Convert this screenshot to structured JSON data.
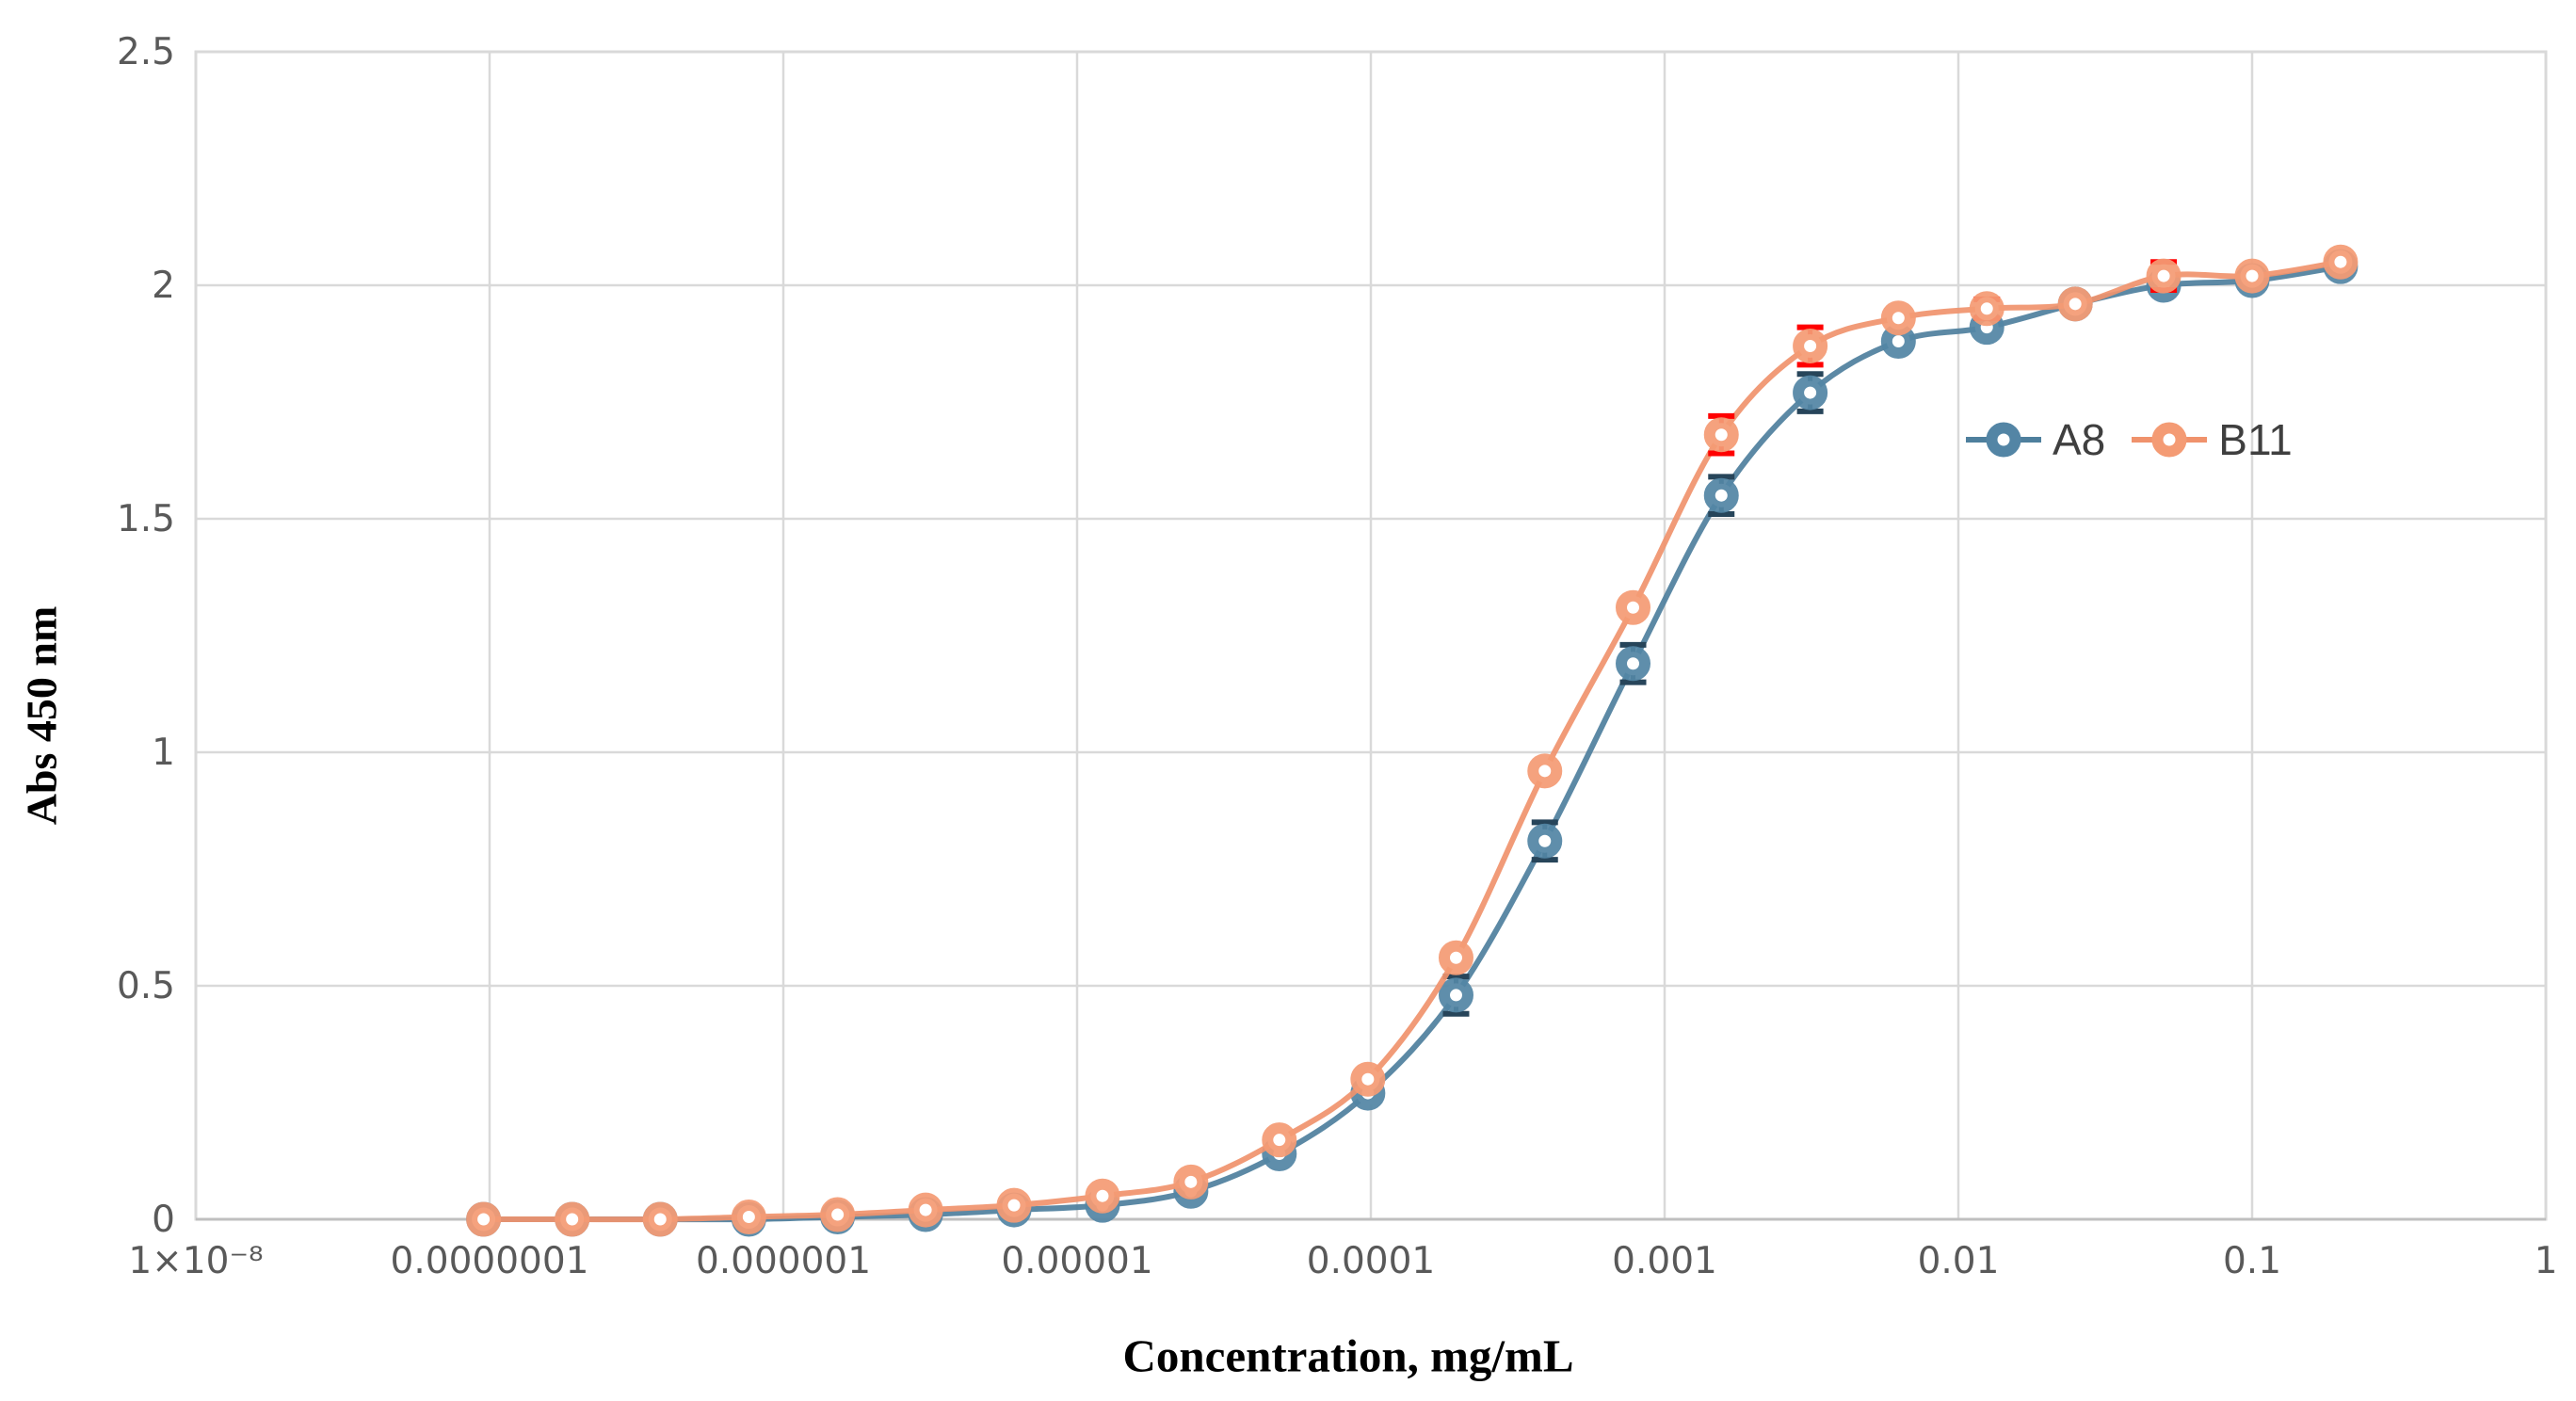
{
  "chart_data": {
    "type": "line",
    "title": "",
    "xlabel": "Concentration, mg/mL",
    "ylabel": "Abs 450 nm",
    "x_scale": "log",
    "xlim": [
      1e-08,
      1
    ],
    "ylim": [
      0,
      2.5
    ],
    "grid": true,
    "legend_position": "inside-right",
    "x_ticks": [
      {
        "v": 1e-08,
        "label": "1×10⁻⁸"
      },
      {
        "v": 1e-07,
        "label": "0.0000001"
      },
      {
        "v": 1e-06,
        "label": "0.000001"
      },
      {
        "v": 1e-05,
        "label": "0.00001"
      },
      {
        "v": 0.0001,
        "label": "0.0001"
      },
      {
        "v": 0.001,
        "label": "0.001"
      },
      {
        "v": 0.01,
        "label": "0.01"
      },
      {
        "v": 0.1,
        "label": "0.1"
      },
      {
        "v": 1,
        "label": "1"
      }
    ],
    "y_ticks": [
      {
        "v": 0,
        "label": "0"
      },
      {
        "v": 0.5,
        "label": "0.5"
      },
      {
        "v": 1,
        "label": "1"
      },
      {
        "v": 1.5,
        "label": "1.5"
      },
      {
        "v": 2,
        "label": "2"
      },
      {
        "v": 2.5,
        "label": "2.5"
      }
    ],
    "x": [
      9.54e-08,
      1.91e-07,
      3.81e-07,
      7.63e-07,
      1.53e-06,
      3.05e-06,
      6.1e-06,
      1.22e-05,
      2.44e-05,
      4.88e-05,
      9.77e-05,
      0.000195,
      0.000391,
      0.000781,
      0.00156,
      0.00313,
      0.00625,
      0.0125,
      0.025,
      0.05,
      0.1,
      0.2
    ],
    "series": [
      {
        "name": "A8",
        "color": "#5385A5",
        "line_color": "#4E7F9D",
        "error_color": "#27455A",
        "values": [
          0.0,
          0.0,
          0.0,
          0.0,
          0.005,
          0.01,
          0.02,
          0.03,
          0.06,
          0.14,
          0.27,
          0.48,
          0.81,
          1.19,
          1.55,
          1.77,
          1.88,
          1.91,
          1.96,
          2.0,
          2.01,
          2.04
        ],
        "error": [
          0,
          0,
          0,
          0,
          0,
          0,
          0,
          0,
          0,
          0,
          0,
          0.04,
          0.04,
          0.04,
          0.04,
          0.04,
          0,
          0,
          0,
          0,
          0,
          0
        ]
      },
      {
        "name": "B11",
        "color": "#F49B74",
        "line_color": "#F0926C",
        "error_color": "#FF0000",
        "values": [
          0.0,
          0.0,
          0.0,
          0.005,
          0.01,
          0.02,
          0.03,
          0.05,
          0.08,
          0.17,
          0.3,
          0.56,
          0.96,
          1.31,
          1.68,
          1.87,
          1.93,
          1.95,
          1.96,
          2.02,
          2.02,
          2.05
        ],
        "error": [
          0,
          0,
          0,
          0,
          0,
          0,
          0,
          0,
          0,
          0,
          0,
          0,
          0,
          0,
          0.04,
          0.04,
          0,
          0.02,
          0,
          0.03,
          0,
          0
        ]
      }
    ]
  },
  "style": {
    "background": "#ffffff",
    "grid_color": "#D9D9D9",
    "axis_color": "#BFBFBF",
    "tick_color": "#595959",
    "legend_text_color": "#3F3F3F"
  }
}
